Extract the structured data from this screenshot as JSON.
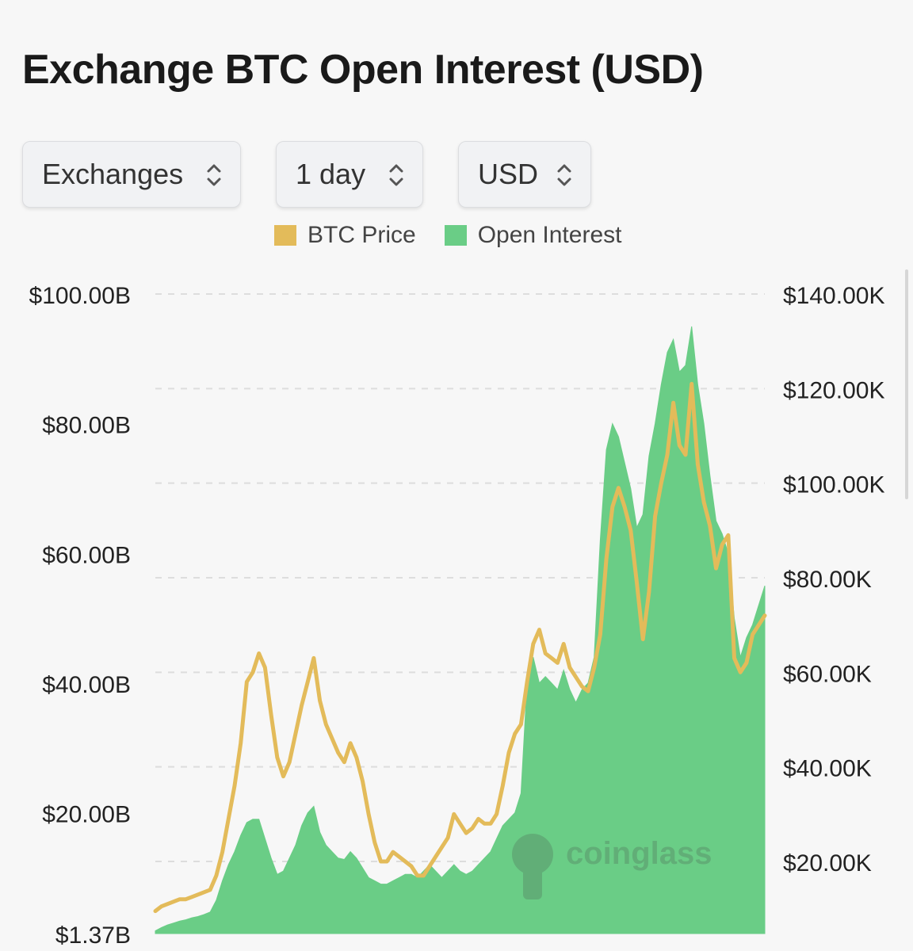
{
  "page": {
    "title": "Exchange BTC Open Interest (USD)"
  },
  "controls": [
    {
      "label": "Exchanges"
    },
    {
      "label": "1 day"
    },
    {
      "label": "USD"
    }
  ],
  "watermark": "coinglass",
  "colors": {
    "btc_price": "#e3bb5a",
    "open_interest": "#6acd86",
    "grid": "#dddddd"
  },
  "chart_data": {
    "type": "area",
    "legend": {
      "position": "top-center"
    },
    "grid": true,
    "x": [
      0,
      1,
      2,
      3,
      4,
      5,
      6,
      7,
      8,
      9,
      10,
      11,
      12,
      13,
      14,
      15,
      16,
      17,
      18,
      19,
      20,
      21,
      22,
      23,
      24,
      25,
      26,
      27,
      28,
      29,
      30,
      31,
      32,
      33,
      34,
      35,
      36,
      37,
      38,
      39,
      40,
      41,
      42,
      43,
      44,
      45,
      46,
      47,
      48,
      49,
      50,
      51,
      52,
      53,
      54,
      55,
      56,
      57,
      58,
      59,
      60,
      61,
      62,
      63,
      64,
      65,
      66,
      67,
      68,
      69,
      70,
      71,
      72,
      73,
      74,
      75,
      76,
      77,
      78,
      79,
      80,
      81,
      82,
      83,
      84,
      85,
      86,
      87,
      88,
      89,
      90,
      91,
      92,
      93,
      94,
      95,
      96,
      97,
      98,
      99,
      100
    ],
    "y_axes": {
      "left": {
        "label": "Open Interest",
        "ticks": [
          "$1.37B",
          "$20.00B",
          "$40.00B",
          "$60.00B",
          "$80.00B",
          "$100.00B"
        ],
        "tick_values": [
          1.37,
          20,
          40,
          60,
          80,
          100
        ],
        "range": [
          1.37,
          100
        ]
      },
      "right": {
        "label": "BTC Price",
        "ticks": [
          "$20.00K",
          "$40.00K",
          "$60.00K",
          "$80.00K",
          "$100.00K",
          "$120.00K",
          "$140.00K"
        ],
        "tick_values": [
          20,
          40,
          60,
          80,
          100,
          120,
          140
        ],
        "range": [
          5,
          140
        ]
      }
    },
    "series": [
      {
        "name": "BTC Price",
        "axis": "right",
        "unit": "K USD",
        "values": [
          9.5,
          10.5,
          11,
          11.5,
          12,
          12,
          12.5,
          13,
          13.5,
          14,
          17,
          22,
          29,
          36,
          45,
          58,
          60,
          64,
          61,
          51,
          42,
          38,
          41,
          47,
          53,
          58,
          63,
          54,
          49,
          46,
          43,
          41,
          45,
          42,
          37,
          30,
          24,
          20,
          20,
          22,
          21,
          20,
          19,
          17,
          17,
          19,
          21,
          23,
          25,
          30,
          28,
          26,
          27,
          29,
          28,
          28,
          30,
          36,
          43,
          47,
          49,
          58,
          66,
          69,
          64,
          63,
          62,
          66,
          61,
          59,
          57,
          56,
          61,
          68,
          84,
          95,
          99,
          95,
          90,
          79,
          67,
          77,
          93,
          100,
          106,
          117,
          108,
          106,
          121,
          104,
          96,
          91,
          82,
          87,
          89,
          63,
          60,
          62,
          68,
          70,
          72
        ]
      },
      {
        "name": "Open Interest",
        "axis": "left",
        "unit": "B USD",
        "values": [
          1.8,
          2.3,
          2.7,
          3,
          3.3,
          3.5,
          3.8,
          4,
          4.3,
          4.7,
          6.5,
          9.5,
          12,
          14,
          16.5,
          18.5,
          19,
          19,
          16,
          13,
          10.5,
          11,
          13,
          15,
          18,
          20,
          21,
          17,
          15,
          14,
          13,
          12.8,
          14,
          13,
          11.5,
          10,
          9.5,
          9,
          9,
          9.5,
          10,
          10.5,
          10.5,
          10,
          11,
          12,
          11,
          10,
          11,
          12,
          11,
          10.5,
          11,
          12,
          13,
          14,
          16,
          18,
          19,
          20,
          23,
          40,
          44,
          40,
          41,
          40,
          39,
          42,
          39,
          37,
          39,
          40,
          44,
          62,
          76,
          80,
          78,
          74,
          70,
          64,
          66,
          75,
          80,
          86,
          91,
          93,
          88,
          89,
          95,
          86,
          80,
          72,
          65,
          63,
          60,
          50,
          44,
          47,
          49,
          52,
          55
        ]
      }
    ]
  }
}
